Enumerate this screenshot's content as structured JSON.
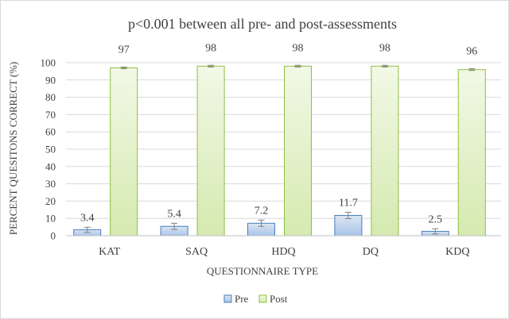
{
  "chart_data": {
    "type": "bar",
    "title": "p<0.001 between all pre- and post-assessments",
    "xlabel": "QUESTIONNAIRE TYPE",
    "ylabel": "PERCENT QUESITONS CORRECT (%)",
    "categories": [
      "KAT",
      "SAQ",
      "HDQ",
      "DQ",
      "KDQ"
    ],
    "ylim": [
      0,
      100
    ],
    "yticks": [
      0,
      10,
      20,
      30,
      40,
      50,
      60,
      70,
      80,
      90,
      100
    ],
    "grid": true,
    "legend_position": "bottom",
    "series": [
      {
        "name": "Pre",
        "values": [
          3.4,
          5.4,
          7.2,
          11.7,
          2.5
        ],
        "labels": [
          "3.4",
          "5.4",
          "7.2",
          "11.7",
          "2.5"
        ],
        "error": [
          1.5,
          1.8,
          1.8,
          1.8,
          1.5
        ],
        "fill_top": "#dce6f2",
        "fill_bottom": "#a9c4e8",
        "stroke": "#4a7ebb"
      },
      {
        "name": "Post",
        "values": [
          97,
          98,
          98,
          98,
          96
        ],
        "labels": [
          "97",
          "98",
          "98",
          "98",
          "96"
        ],
        "error": [
          0.5,
          0.5,
          0.5,
          0.5,
          0.5
        ],
        "fill_top": "#f2f8e6",
        "fill_bottom": "#d5eab0",
        "stroke": "#8fbf3f"
      }
    ]
  }
}
